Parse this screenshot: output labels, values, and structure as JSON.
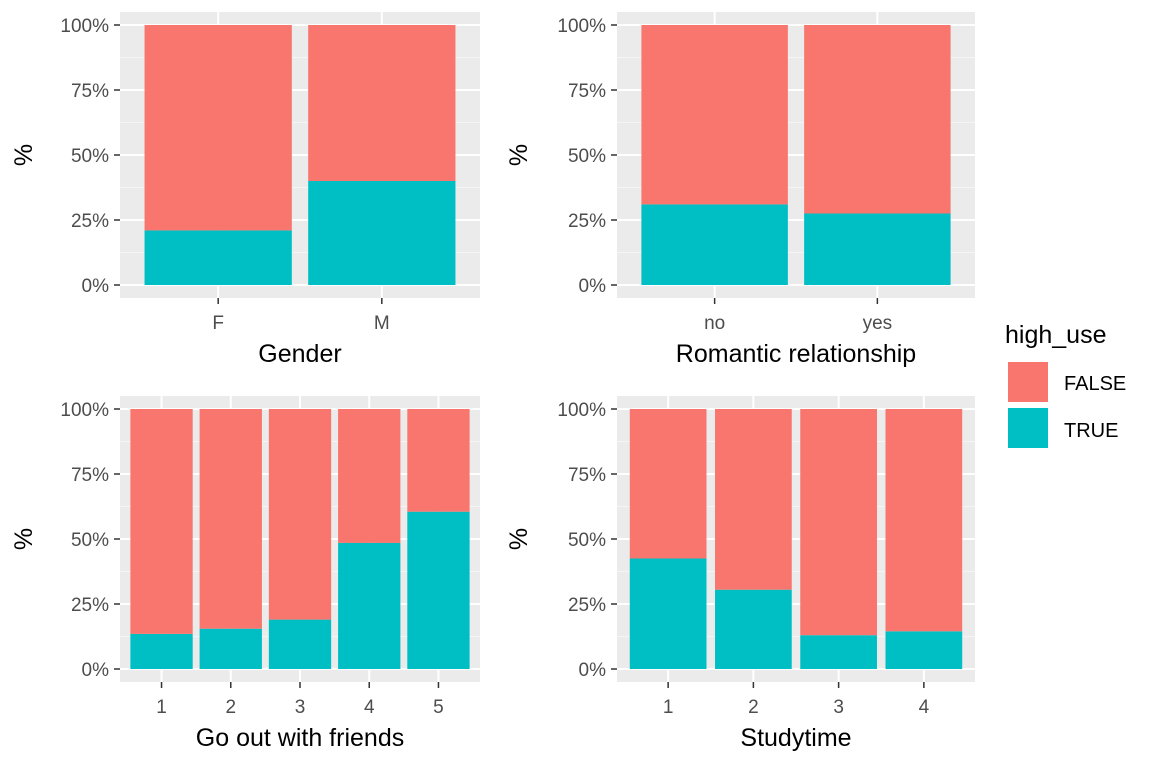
{
  "colors": {
    "panel_background": "#ebebeb",
    "grid_major": "#ffffff",
    "grid_minor": "#f5f5f5",
    "tick_text": "#4d4d4d",
    "tick_mark": "#333333",
    "false_fill": "#f8766d",
    "true_fill": "#00bfc4"
  },
  "legend": {
    "title": "high_use",
    "entries": [
      {
        "label": "FALSE",
        "color": "#f8766d"
      },
      {
        "label": "TRUE",
        "color": "#00bfc4"
      }
    ]
  },
  "chart_data": [
    {
      "type": "bar",
      "stacked": "fill",
      "xlabel": "Gender",
      "ylabel": "%",
      "y_ticks": [
        "0%",
        "25%",
        "50%",
        "75%",
        "100%"
      ],
      "ylim": [
        0,
        1
      ],
      "categories": [
        "F",
        "M"
      ],
      "series": [
        {
          "name": "FALSE",
          "values": [
            0.79,
            0.6
          ]
        },
        {
          "name": "TRUE",
          "values": [
            0.21,
            0.4
          ]
        }
      ]
    },
    {
      "type": "bar",
      "stacked": "fill",
      "xlabel": "Romantic relationship",
      "ylabel": "%",
      "y_ticks": [
        "0%",
        "25%",
        "50%",
        "75%",
        "100%"
      ],
      "ylim": [
        0,
        1
      ],
      "categories": [
        "no",
        "yes"
      ],
      "series": [
        {
          "name": "FALSE",
          "values": [
            0.69,
            0.725
          ]
        },
        {
          "name": "TRUE",
          "values": [
            0.31,
            0.275
          ]
        }
      ]
    },
    {
      "type": "bar",
      "stacked": "fill",
      "xlabel": "Go out with friends",
      "ylabel": "%",
      "y_ticks": [
        "0%",
        "25%",
        "50%",
        "75%",
        "100%"
      ],
      "ylim": [
        0,
        1
      ],
      "categories": [
        "1",
        "2",
        "3",
        "4",
        "5"
      ],
      "series": [
        {
          "name": "FALSE",
          "values": [
            0.865,
            0.845,
            0.81,
            0.515,
            0.395
          ]
        },
        {
          "name": "TRUE",
          "values": [
            0.135,
            0.155,
            0.19,
            0.485,
            0.605
          ]
        }
      ]
    },
    {
      "type": "bar",
      "stacked": "fill",
      "xlabel": "Studytime",
      "ylabel": "%",
      "y_ticks": [
        "0%",
        "25%",
        "50%",
        "75%",
        "100%"
      ],
      "ylim": [
        0,
        1
      ],
      "categories": [
        "1",
        "2",
        "3",
        "4"
      ],
      "series": [
        {
          "name": "FALSE",
          "values": [
            0.575,
            0.695,
            0.87,
            0.855
          ]
        },
        {
          "name": "TRUE",
          "values": [
            0.425,
            0.305,
            0.13,
            0.145
          ]
        }
      ]
    }
  ]
}
